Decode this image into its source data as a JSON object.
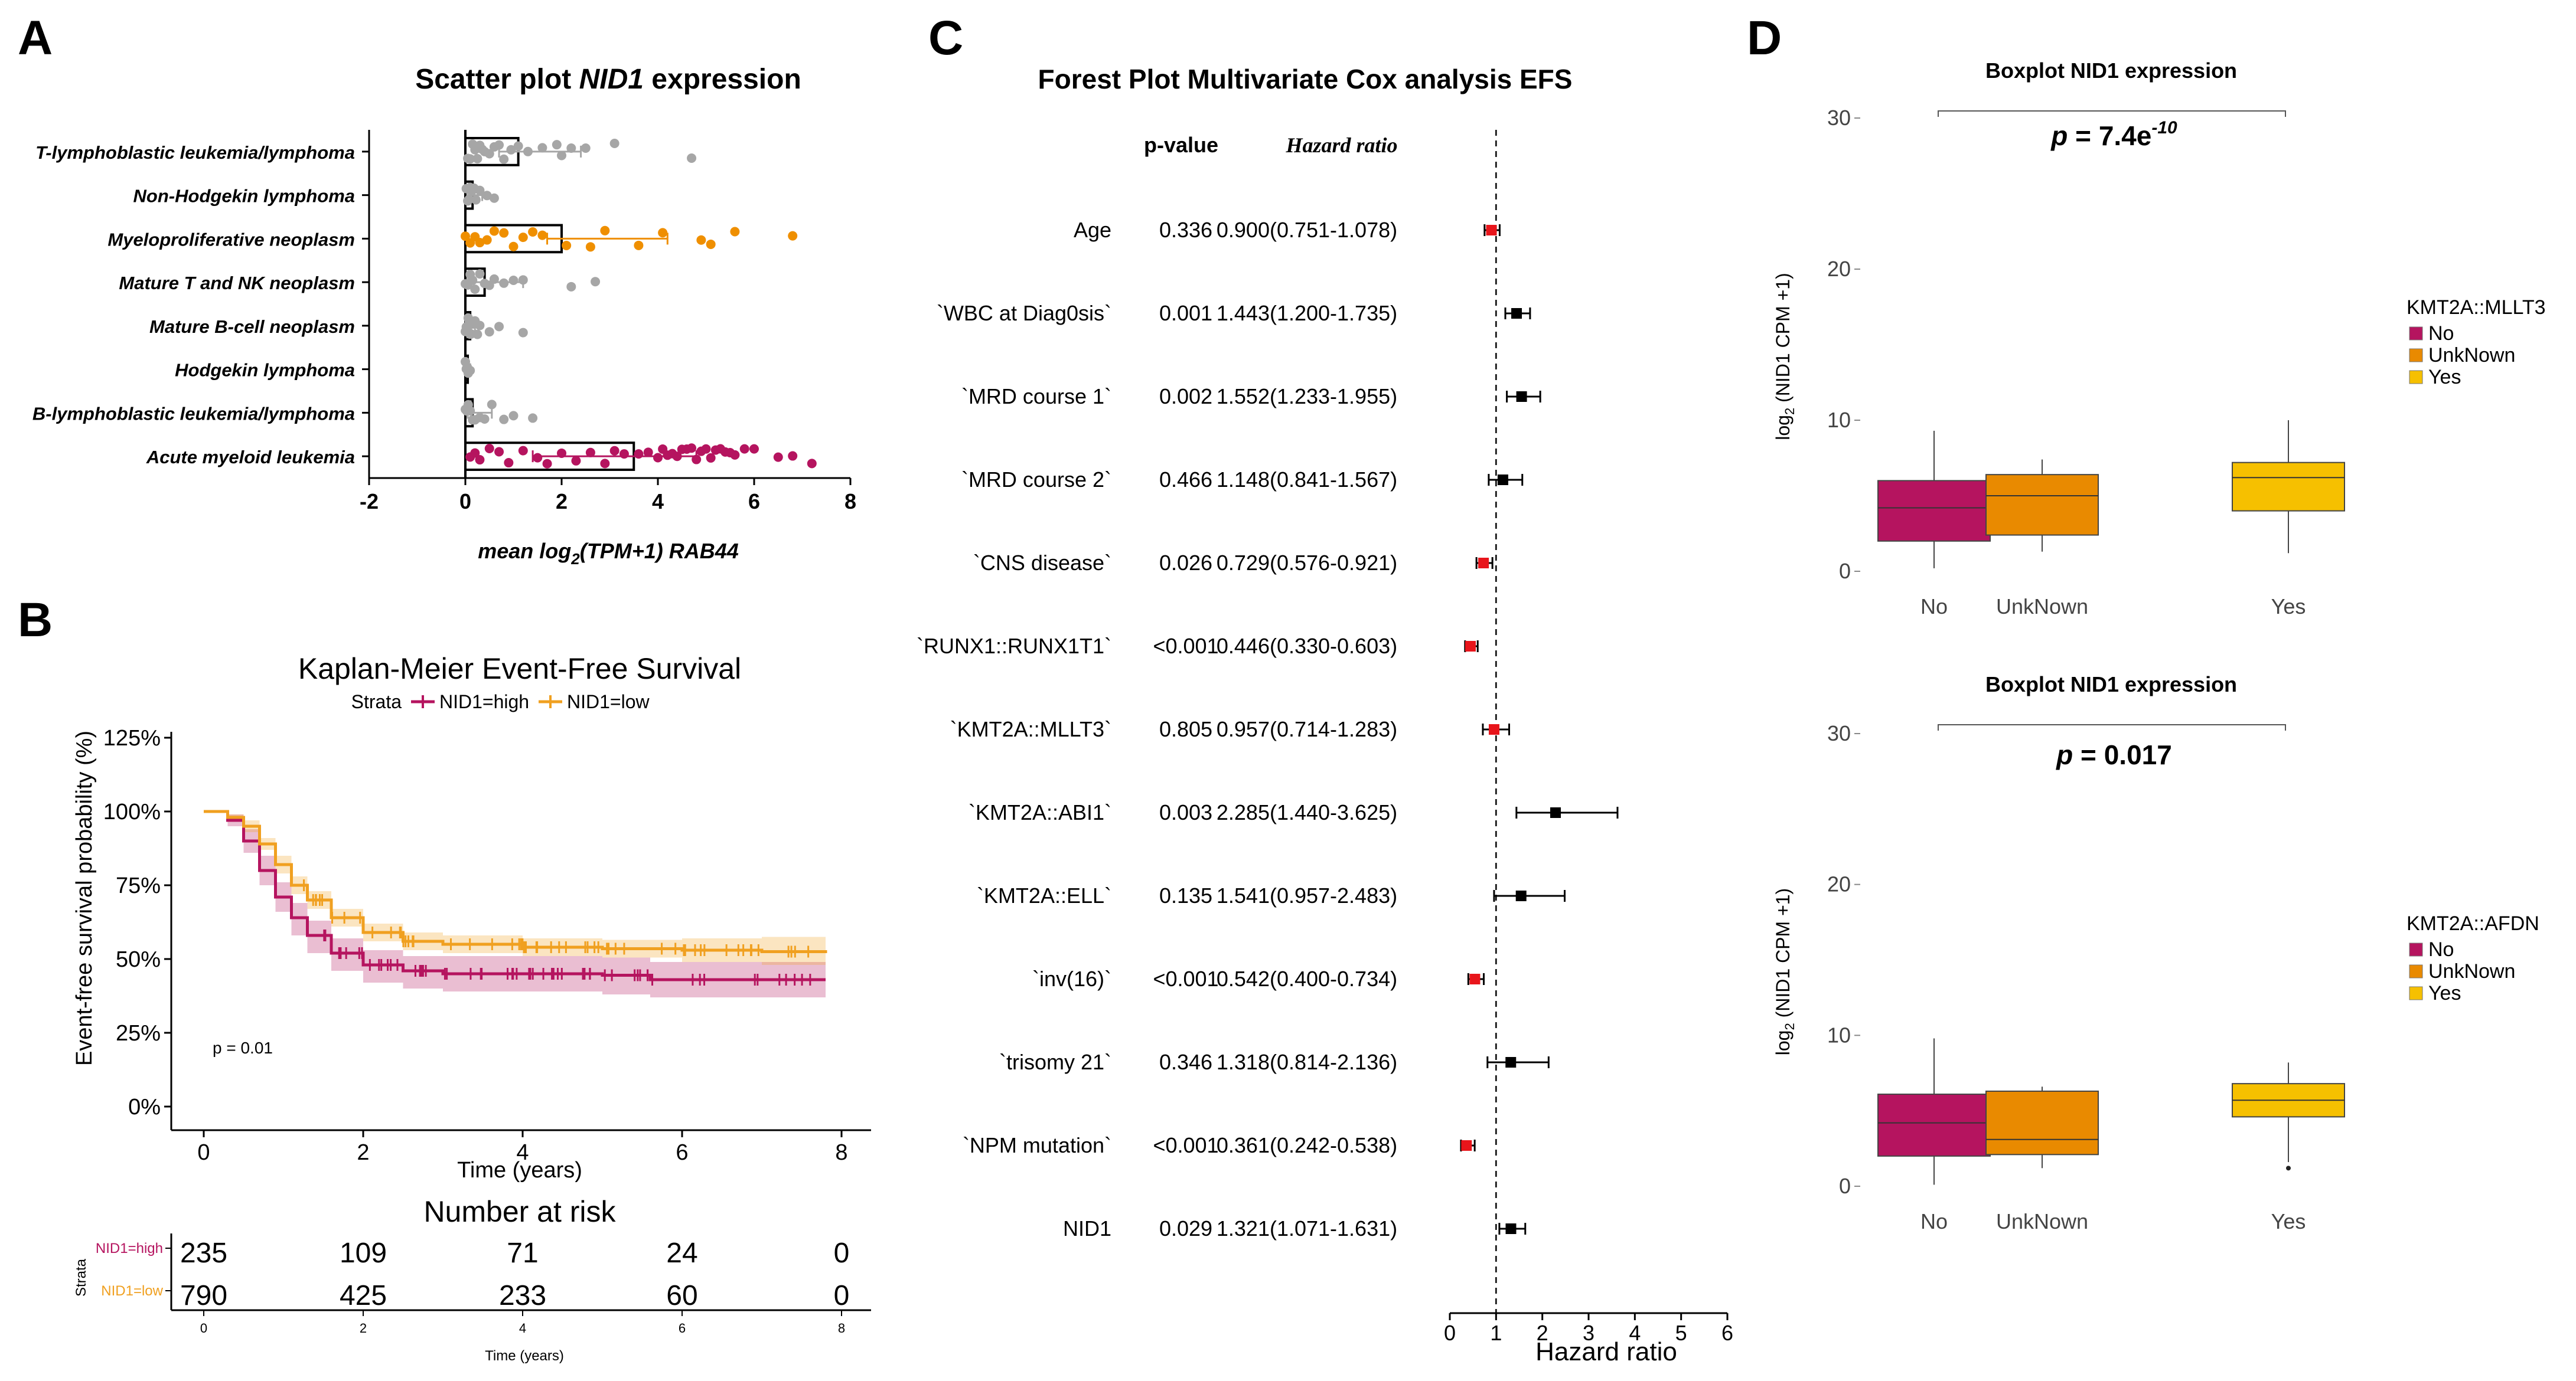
{
  "panels": {
    "a": "A",
    "b": "B",
    "c": "C",
    "d": "D"
  },
  "colors": {
    "aml": "#b5145f",
    "mpn": "#ef8f00",
    "grey": "#a6a6a6",
    "high": "#b5145f",
    "low": "#f0a020",
    "no": "#b5145f",
    "unknown": "#e98a00",
    "yes": "#f6c000",
    "red": "#e8151b",
    "black": "#000000"
  },
  "chart_data": [
    {
      "id": "A",
      "type": "bar",
      "title_prefix": "Scatter plot ",
      "title_italic": "NID1",
      "title_suffix": " expression",
      "xlabel_prefix": "mean log",
      "xlabel_sub": "2",
      "xlabel_suffix": "(TPM+1) RAB44",
      "xlim": [
        -2,
        8
      ],
      "xticks": [
        "-2",
        "0",
        "2",
        "4",
        "6",
        "8"
      ],
      "categories": [
        {
          "label": "T-lymphoblastic leukemia/lymphoma",
          "mean": 1.1,
          "error": 1.3,
          "err_low": 0.4,
          "color": "grey",
          "points": [
            0.05,
            0.1,
            0.15,
            0.2,
            0.25,
            0.3,
            0.35,
            0.4,
            0.5,
            0.6,
            0.7,
            0.8,
            0.95,
            1.1,
            1.3,
            1.6,
            1.9,
            2.0,
            2.2,
            2.5,
            3.1,
            4.7
          ]
        },
        {
          "label": "Non-Hodgekin lymphoma",
          "mean": 0.15,
          "error": 0.2,
          "err_low": 0.1,
          "color": "grey",
          "points": [
            0.02,
            0.05,
            0.08,
            0.1,
            0.14,
            0.18,
            0.22,
            0.3,
            0.45,
            0.6
          ]
        },
        {
          "label": "Myeloproliferative neoplasm",
          "mean": 2.0,
          "error": 2.2,
          "err_low": 0.3,
          "color": "mpn",
          "points": [
            0.0,
            0.1,
            0.2,
            0.3,
            0.45,
            0.6,
            0.8,
            1.0,
            1.2,
            1.4,
            1.6,
            2.1,
            2.6,
            2.9,
            3.6,
            4.1,
            4.9,
            5.1,
            5.6,
            6.8
          ]
        },
        {
          "label": "Mature T and NK neoplasm",
          "mean": 0.4,
          "error": 0.8,
          "err_low": 0.35,
          "color": "grey",
          "points": [
            0.0,
            0.05,
            0.1,
            0.15,
            0.2,
            0.3,
            0.4,
            0.5,
            0.6,
            0.8,
            1.0,
            1.2,
            2.2,
            2.7
          ]
        },
        {
          "label": "Mature B-cell neoplasm",
          "mean": 0.1,
          "error": 0.1,
          "err_low": 0.05,
          "color": "grey",
          "points": [
            0.0,
            0.02,
            0.04,
            0.06,
            0.08,
            0.1,
            0.12,
            0.15,
            0.2,
            0.25,
            0.3,
            0.5,
            0.7,
            1.2
          ]
        },
        {
          "label": "Hodgekin lymphoma",
          "mean": 0.05,
          "error": 0.05,
          "err_low": 0.03,
          "color": "grey",
          "points": [
            0.0,
            0.02,
            0.04,
            0.06,
            0.1
          ]
        },
        {
          "label": "B-lymphoblastic leukemia/lymphoma",
          "mean": 0.15,
          "error": 0.4,
          "err_low": 0.1,
          "color": "grey",
          "points": [
            0.0,
            0.03,
            0.06,
            0.1,
            0.15,
            0.2,
            0.3,
            0.4,
            0.55,
            0.8,
            1.0,
            1.4
          ]
        },
        {
          "label": "Acute myeloid leukemia",
          "mean": 3.5,
          "error": 1.3,
          "err_low": 2.1,
          "color": "aml",
          "points": [
            0.1,
            0.2,
            0.3,
            0.5,
            0.7,
            0.9,
            1.2,
            1.5,
            1.7,
            2.0,
            2.3,
            2.6,
            2.9,
            3.1,
            3.3,
            3.6,
            3.8,
            4.0,
            4.1,
            4.2,
            4.3,
            4.4,
            4.5,
            4.6,
            4.7,
            4.8,
            4.9,
            5.0,
            5.1,
            5.2,
            5.3,
            5.4,
            5.5,
            5.6,
            5.8,
            6.0,
            6.5,
            6.8,
            7.2
          ]
        }
      ]
    },
    {
      "id": "B",
      "type": "line",
      "title": "Kaplan-Meier Event-Free Survival",
      "legend_title": "Strata",
      "series": [
        {
          "name": "NID1=high",
          "color": "high",
          "x": [
            0,
            0.3,
            0.5,
            0.7,
            0.9,
            1.1,
            1.3,
            1.6,
            2.0,
            2.5,
            3.0,
            4.0,
            5.0,
            5.5,
            5.6,
            6.5,
            7.8
          ],
          "y": [
            100,
            97,
            90,
            80,
            71,
            64,
            58,
            52,
            48,
            46,
            45,
            45,
            44.5,
            44.5,
            43,
            43,
            43
          ],
          "lower": [
            100,
            95,
            86,
            75,
            66,
            58,
            52,
            46,
            42,
            40,
            39,
            39,
            38,
            38,
            37,
            37,
            37
          ],
          "upper": [
            100,
            99,
            94,
            85,
            76,
            69,
            63,
            57,
            53,
            51,
            51,
            51,
            50.5,
            50.5,
            49,
            49,
            49
          ]
        },
        {
          "name": "NID1=low",
          "color": "low",
          "x": [
            0,
            0.3,
            0.5,
            0.7,
            0.9,
            1.1,
            1.3,
            1.6,
            2.0,
            2.5,
            3.0,
            4.0,
            5.0,
            6.0,
            7.0,
            7.8
          ],
          "y": [
            100,
            98,
            95,
            89,
            82,
            75,
            70,
            64,
            59,
            56,
            55,
            54,
            53.5,
            53,
            52.5,
            52
          ],
          "lower": [
            100,
            97,
            93,
            87,
            79,
            72,
            67,
            61,
            56,
            53,
            52,
            51,
            50.5,
            49,
            48,
            47
          ],
          "upper": [
            100,
            99,
            97,
            91,
            85,
            78,
            73,
            67,
            62,
            59,
            58,
            57,
            56.5,
            57,
            57.5,
            57
          ]
        }
      ],
      "p_text": "p = 0.01",
      "ylabel": "Event-free survival probability (%)",
      "xlabel": "Time (years)",
      "yticks": [
        "0%",
        "25%",
        "50%",
        "75%",
        "100%",
        "125%"
      ],
      "xticks": [
        "0",
        "2",
        "4",
        "6",
        "8"
      ],
      "ylim": [
        0,
        125
      ],
      "xlim": [
        0,
        8
      ],
      "risk_title": "Number at risk",
      "risk_ylabel": "Strata",
      "risk_xlabel": "Time (years)",
      "risk_rows": [
        {
          "name": "NID1=high",
          "values": [
            "235",
            "109",
            "71",
            "24",
            "0"
          ]
        },
        {
          "name": "NID1=low",
          "values": [
            "790",
            "425",
            "233",
            "60",
            "0"
          ]
        }
      ]
    },
    {
      "id": "C",
      "type": "scatter",
      "title": "Forest Plot Multivariate Cox analysis EFS",
      "col_p": "p-value",
      "col_hr": "Hazard ratio",
      "xlabel": "Hazard ratio",
      "xlim": [
        0,
        6
      ],
      "xticks": [
        "0",
        "1",
        "2",
        "3",
        "4",
        "5",
        "6"
      ],
      "rows": [
        {
          "label": "Age",
          "p": "0.336",
          "ci": "0.900(0.751-1.078)",
          "hr": 0.9,
          "lo": 0.751,
          "hi": 1.078,
          "color": "red"
        },
        {
          "label": "`WBC at Diag0sis`",
          "p": "0.001",
          "ci": "1.443(1.200-1.735)",
          "hr": 1.443,
          "lo": 1.2,
          "hi": 1.735,
          "color": "black"
        },
        {
          "label": "`MRD course 1`",
          "p": "0.002",
          "ci": "1.552(1.233-1.955)",
          "hr": 1.552,
          "lo": 1.233,
          "hi": 1.955,
          "color": "black"
        },
        {
          "label": "`MRD course 2`",
          "p": "0.466",
          "ci": "1.148(0.841-1.567)",
          "hr": 1.148,
          "lo": 0.841,
          "hi": 1.567,
          "color": "black"
        },
        {
          "label": "`CNS disease`",
          "p": "0.026",
          "ci": "0.729(0.576-0.921)",
          "hr": 0.729,
          "lo": 0.576,
          "hi": 0.921,
          "color": "red"
        },
        {
          "label": "`RUNX1::RUNX1T1`",
          "p": "<0.001",
          "ci": "0.446(0.330-0.603)",
          "hr": 0.446,
          "lo": 0.33,
          "hi": 0.603,
          "color": "red"
        },
        {
          "label": "`KMT2A::MLLT3`",
          "p": "0.805",
          "ci": "0.957(0.714-1.283)",
          "hr": 0.957,
          "lo": 0.714,
          "hi": 1.283,
          "color": "red"
        },
        {
          "label": "`KMT2A::ABI1`",
          "p": "0.003",
          "ci": "2.285(1.440-3.625)",
          "hr": 2.285,
          "lo": 1.44,
          "hi": 3.625,
          "color": "black"
        },
        {
          "label": "`KMT2A::ELL`",
          "p": "0.135",
          "ci": "1.541(0.957-2.483)",
          "hr": 1.541,
          "lo": 0.957,
          "hi": 2.483,
          "color": "black"
        },
        {
          "label": "`inv(16)`",
          "p": "<0.001",
          "ci": "0.542(0.400-0.734)",
          "hr": 0.542,
          "lo": 0.4,
          "hi": 0.734,
          "color": "red"
        },
        {
          "label": "`trisomy 21`",
          "p": "0.346",
          "ci": "1.318(0.814-2.136)",
          "hr": 1.318,
          "lo": 0.814,
          "hi": 2.136,
          "color": "black"
        },
        {
          "label": "`NPM mutation`",
          "p": "<0.001",
          "ci": "0.361(0.242-0.538)",
          "hr": 0.361,
          "lo": 0.242,
          "hi": 0.538,
          "color": "red"
        },
        {
          "label": "NID1",
          "p": "0.029",
          "ci": "1.321(1.071-1.631)",
          "hr": 1.321,
          "lo": 1.071,
          "hi": 1.631,
          "color": "black"
        }
      ]
    },
    {
      "id": "D1",
      "type": "bar",
      "title": "Boxplot NID1 expression",
      "p_prefix": "p",
      "p_value": " = 7.4e",
      "p_exp": "-10",
      "ylabel": "log2 (NID1 CPM +1)",
      "ylabel_main": "log",
      "ylabel_sub": "2",
      "ylabel_rest": " (NID1 CPM +1)",
      "ylim": [
        0,
        30
      ],
      "yticks": [
        "0",
        "10",
        "20",
        "30"
      ],
      "legend_title": "KMT2A::MLLT3",
      "categories": [
        "No",
        "UnkNown",
        "Yes"
      ],
      "boxes": [
        {
          "min": 0.2,
          "q1": 2.0,
          "median": 4.2,
          "q3": 6.0,
          "max": 9.3,
          "color": "no"
        },
        {
          "min": 1.3,
          "q1": 2.4,
          "median": 5.0,
          "q3": 6.4,
          "max": 7.4,
          "color": "unknown"
        },
        {
          "min": 1.2,
          "q1": 4.0,
          "median": 6.2,
          "q3": 7.2,
          "max": 10.0,
          "color": "yes"
        }
      ]
    },
    {
      "id": "D2",
      "type": "bar",
      "title": "Boxplot NID1 expression",
      "p_prefix": "p",
      "p_value": " = 0.017",
      "p_exp": "",
      "ylabel": "log2 (NID1 CPM +1)",
      "ylabel_main": "log",
      "ylabel_sub": "2",
      "ylabel_rest": " (NID1 CPM +1)",
      "ylim": [
        0,
        30
      ],
      "yticks": [
        "0",
        "10",
        "20",
        "30"
      ],
      "legend_title": "KMT2A::AFDN",
      "categories": [
        "No",
        "UnkNown",
        "Yes"
      ],
      "boxes": [
        {
          "min": 0.1,
          "q1": 2.0,
          "median": 4.2,
          "q3": 6.1,
          "max": 9.8,
          "color": "no"
        },
        {
          "min": 1.2,
          "q1": 2.1,
          "median": 3.1,
          "q3": 6.3,
          "max": 6.6,
          "color": "unknown"
        },
        {
          "min": 1.6,
          "q1": 4.6,
          "median": 5.7,
          "q3": 6.8,
          "max": 8.2,
          "color": "yes",
          "outlier": 1.2
        }
      ]
    }
  ]
}
